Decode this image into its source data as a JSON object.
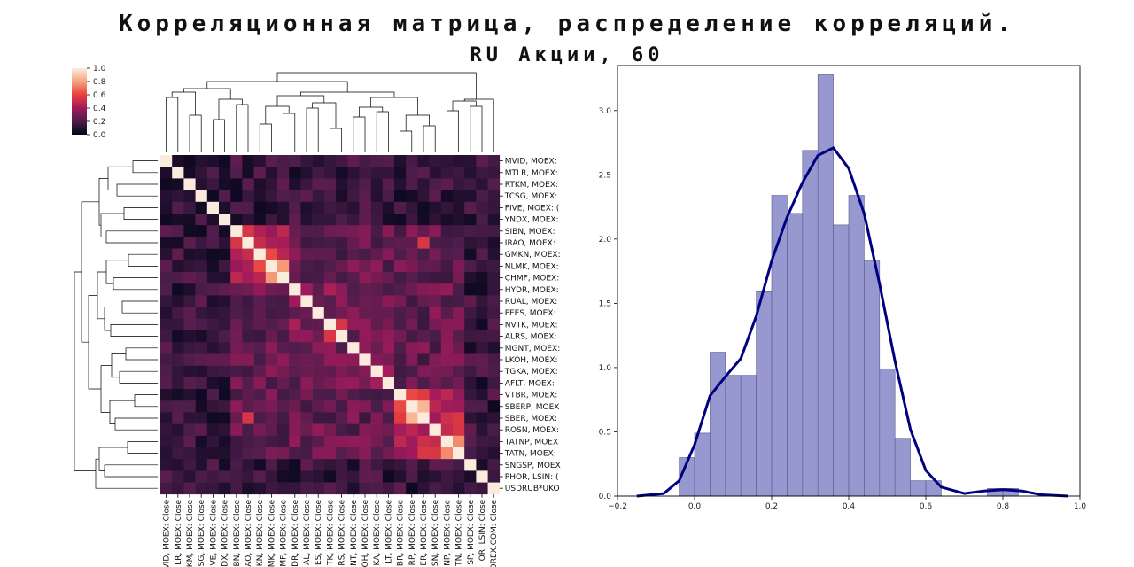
{
  "title": {
    "line1": "Корреляционная матрица, распределение корреляций.",
    "line2": "RU Акции, 60"
  },
  "chart_data": [
    {
      "type": "heatmap",
      "title": "Корреляционная матрица",
      "labels_full": [
        "MVID, MOEX: Close",
        "MTLR, MOEX: Close",
        "RTKM, MOEX: Close",
        "TCSG, MOEX: Close",
        "FIVE, MOEX: Close",
        "YNDX, MOEX: Close",
        "SIBN, MOEX: Close",
        "IRAO, MOEX: Close",
        "GMKN, MOEX: Close",
        "NLMK, MOEX: Close",
        "CHMF, MOEX: Close",
        "HYDR, MOEX: Close",
        "RUAL, MOEX: Close",
        "FEES, MOEX: Close",
        "NVTK, MOEX: Close",
        "ALRS, MOEX: Close",
        "MGNT, MOEX: Close",
        "LKOH, MOEX: Close",
        "TGKA, MOEX: Close",
        "AFLT, MOEX: Close",
        "VTBR, MOEX: Close",
        "SBERP, MOEX: Close",
        "SBER, MOEX: Close",
        "ROSN, MOEX: Close",
        "TATNP, MOEX: Close",
        "TATN, MOEX: Close",
        "SNGSP, MOEX: Close",
        "PHOR, LSIN: Close",
        "USDRUB*UKOREX.COM: Close"
      ],
      "row_labels_visible": [
        "MVID, MOEX:",
        "MTLR, MOEX:",
        "RTKM, MOEX:",
        "TCSG, MOEX:",
        "FIVE, MOEX: (",
        "YNDX, MOEX:",
        "SIBN, MOEX:",
        "IRAO, MOEX:",
        "GMKN, MOEX:",
        "NLMK, MOEX:",
        "CHMF, MOEX:",
        "HYDR, MOEX:",
        "RUAL, MOEX:",
        "FEES, MOEX:",
        "NVTK, MOEX:",
        "ALRS, MOEX:",
        "MGNT, MOEX:",
        "LKOH, MOEX:",
        "TGKA, MOEX:",
        "AFLT, MOEX:",
        "VTBR, MOEX:",
        "SBERP, MOEX",
        "SBER, MOEX:",
        "ROSN, MOEX:",
        "TATNP, MOEX",
        "TATN, MOEX:",
        "SNGSP, MOEX",
        "PHOR, LSIN: (",
        "USDRUB*UKO"
      ],
      "col_labels_visible": [
        "VID, MOEX: Close",
        "LR, MOEX: Close",
        "KM, MOEX: Close",
        "SG, MOEX: Close",
        "VE, MOEX: Close",
        "DX, MOEX: Close",
        "BN, MOEX: Close",
        "AO, MOEX: Close",
        "KN, MOEX: Close",
        "MK, MOEX: Close",
        "MF, MOEX: Close",
        "DR, MOEX: Close",
        "AL, MOEX: Close",
        "ES, MOEX: Close",
        "TK, MOEX: Close",
        "RS, MOEX: Close",
        "NT, MOEX: Close",
        "OH, MOEX: Close",
        "KA, MOEX: Close",
        "LT, MOEX: Close",
        "BR, MOEX: Close",
        "RP, MOEX: Close",
        "ER, MOEX: Close",
        "SN, MOEX: Close",
        "NP, MOEX: Close",
        "TN, MOEX: Close",
        "SP, MOEX: Close",
        "OR, LSIN: Close",
        "OREX.COM: Close"
      ],
      "colorbar": {
        "min": 0.0,
        "max": 1.0,
        "ticks": [
          "1.0",
          "0.8",
          "0.6",
          "0.4",
          "0.2",
          "0.0"
        ],
        "colormap": "rocket"
      },
      "diagonal": 1.0,
      "strong_pairs": [
        {
          "a": "SBERP, MOEX: Close",
          "b": "SBER, MOEX: Close",
          "value": 0.85
        },
        {
          "a": "TATNP, MOEX: Close",
          "b": "TATN, MOEX: Close",
          "value": 0.75
        },
        {
          "a": "NLMK, MOEX: Close",
          "b": "CHMF, MOEX: Close",
          "value": 0.78
        },
        {
          "a": "GMKN, MOEX: Close",
          "b": "NLMK, MOEX: Close",
          "value": 0.62
        },
        {
          "a": "VTBR, MOEX: Close",
          "b": "SBERP, MOEX: Close",
          "value": 0.62
        },
        {
          "a": "VTBR, MOEX: Close",
          "b": "SBER, MOEX: Close",
          "value": 0.58
        },
        {
          "a": "SIBN, MOEX: Close",
          "b": "IRAO, MOEX: Close",
          "value": 0.55
        },
        {
          "a": "NVTK, MOEX: Close",
          "b": "ALRS, MOEX: Close",
          "value": 0.55
        },
        {
          "a": "ROSN, MOEX: Close",
          "b": "TATN, MOEX: Close",
          "value": 0.55
        },
        {
          "a": "IRAO, MOEX: Close",
          "b": "SBER, MOEX: Close",
          "value": 0.55
        }
      ],
      "clusters": [
        {
          "members": [
            "MVID, MOEX: Close",
            "MTLR, MOEX: Close",
            "RTKM, MOEX: Close",
            "TCSG, MOEX: Close",
            "FIVE, MOEX: Close",
            "YNDX, MOEX: Close"
          ],
          "within_corr": 0.15
        },
        {
          "members": [
            "SIBN, MOEX: Close",
            "IRAO, MOEX: Close",
            "GMKN, MOEX: Close",
            "NLMK, MOEX: Close",
            "CHMF, MOEX: Close"
          ],
          "within_corr": 0.42
        },
        {
          "members": [
            "HYDR, MOEX: Close",
            "RUAL, MOEX: Close",
            "FEES, MOEX: Close",
            "NVTK, MOEX: Close",
            "ALRS, MOEX: Close"
          ],
          "within_corr": 0.33
        },
        {
          "members": [
            "MGNT, MOEX: Close",
            "LKOH, MOEX: Close",
            "TGKA, MOEX: Close",
            "AFLT, MOEX: Close"
          ],
          "within_corr": 0.35
        },
        {
          "members": [
            "VTBR, MOEX: Close",
            "SBERP, MOEX: Close",
            "SBER, MOEX: Close",
            "ROSN, MOEX: Close",
            "TATNP, MOEX: Close",
            "TATN, MOEX: Close"
          ],
          "within_corr": 0.45
        },
        {
          "members": [
            "SNGSP, MOEX: Close",
            "PHOR, LSIN: Close",
            "USDRUB*UKOREX.COM: Close"
          ],
          "within_corr": 0.15
        }
      ],
      "dendrogram": "hierarchical clustering tree on rows (left) and columns (top)"
    },
    {
      "type": "histogram",
      "title": "Распределение корреляций",
      "xlim": [
        -0.2,
        1.0
      ],
      "ylim": [
        0,
        3.35
      ],
      "xticks": [
        "−0.2",
        "0.0",
        "0.2",
        "0.4",
        "0.6",
        "0.8",
        "1.0"
      ],
      "yticks": [
        "0.0",
        "0.5",
        "1.0",
        "1.5",
        "2.0",
        "2.5",
        "3.0"
      ],
      "bin_width": 0.04,
      "bin_edges": [
        -0.04,
        0.0,
        0.04,
        0.08,
        0.12,
        0.16,
        0.2,
        0.24,
        0.28,
        0.32,
        0.36,
        0.4,
        0.44,
        0.48,
        0.52,
        0.56,
        0.6,
        0.64,
        0.68,
        0.72,
        0.76,
        0.8,
        0.84,
        0.88
      ],
      "density": [
        0.3,
        0.49,
        1.12,
        0.94,
        0.94,
        1.59,
        2.34,
        2.2,
        2.69,
        3.28,
        2.11,
        2.34,
        1.83,
        0.99,
        0.45,
        0.12,
        0.12,
        0.0,
        0.0,
        0.0,
        0.06,
        0.06,
        0.0
      ],
      "bar_color": "#7e7ec5",
      "kde": {
        "color": "#000080",
        "x": [
          -0.15,
          -0.08,
          -0.04,
          0.0,
          0.04,
          0.08,
          0.12,
          0.16,
          0.2,
          0.24,
          0.28,
          0.32,
          0.36,
          0.4,
          0.44,
          0.48,
          0.52,
          0.56,
          0.6,
          0.64,
          0.7,
          0.75,
          0.8,
          0.85,
          0.9,
          0.97
        ],
        "y": [
          0.0,
          0.02,
          0.12,
          0.4,
          0.78,
          0.93,
          1.07,
          1.4,
          1.83,
          2.17,
          2.44,
          2.65,
          2.71,
          2.55,
          2.2,
          1.65,
          1.05,
          0.52,
          0.2,
          0.07,
          0.02,
          0.04,
          0.05,
          0.04,
          0.01,
          0.0
        ]
      }
    }
  ]
}
